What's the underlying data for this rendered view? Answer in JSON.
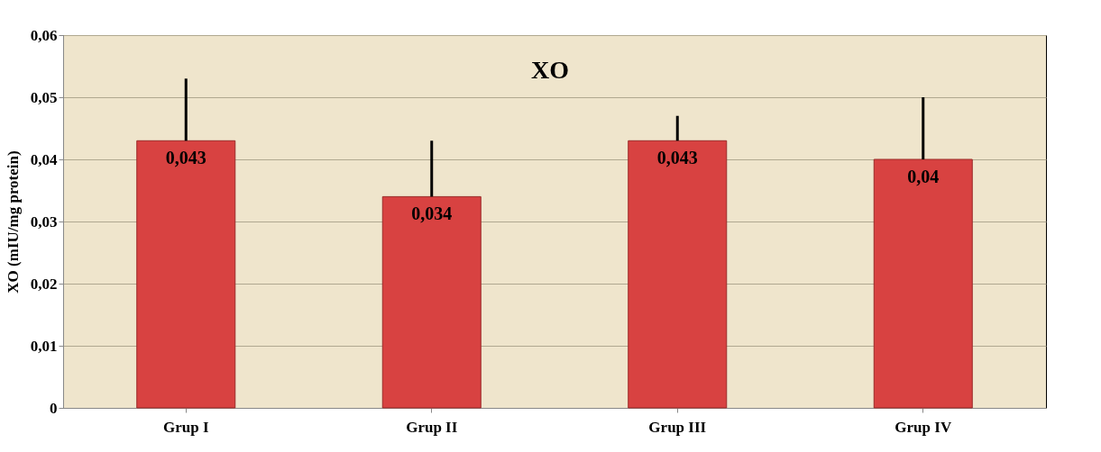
{
  "chart_data": {
    "type": "bar",
    "title": "XO",
    "ylabel": "XO (mIU/mg protein)",
    "categories": [
      "Grup I",
      "Grup II",
      "Grup III",
      "Grup IV"
    ],
    "values": [
      0.043,
      0.034,
      0.043,
      0.04
    ],
    "value_labels": [
      "0,043",
      "0,034",
      "0,043",
      "0,04"
    ],
    "errors": [
      [
        0.043,
        0.053
      ],
      [
        0.034,
        0.043
      ],
      [
        0.043,
        0.047
      ],
      [
        0.04,
        0.05
      ]
    ],
    "color": "#d84241",
    "ylim": [
      0,
      0.06
    ],
    "yticks": [
      {
        "value": 0,
        "label": "0"
      },
      {
        "value": 0.01,
        "label": "0,01"
      },
      {
        "value": 0.02,
        "label": "0,02"
      },
      {
        "value": 0.03,
        "label": "0,03"
      },
      {
        "value": 0.04,
        "label": "0,04"
      },
      {
        "value": 0.05,
        "label": "0,05"
      },
      {
        "value": 0.06,
        "label": "0,06"
      }
    ],
    "grid": "y"
  }
}
